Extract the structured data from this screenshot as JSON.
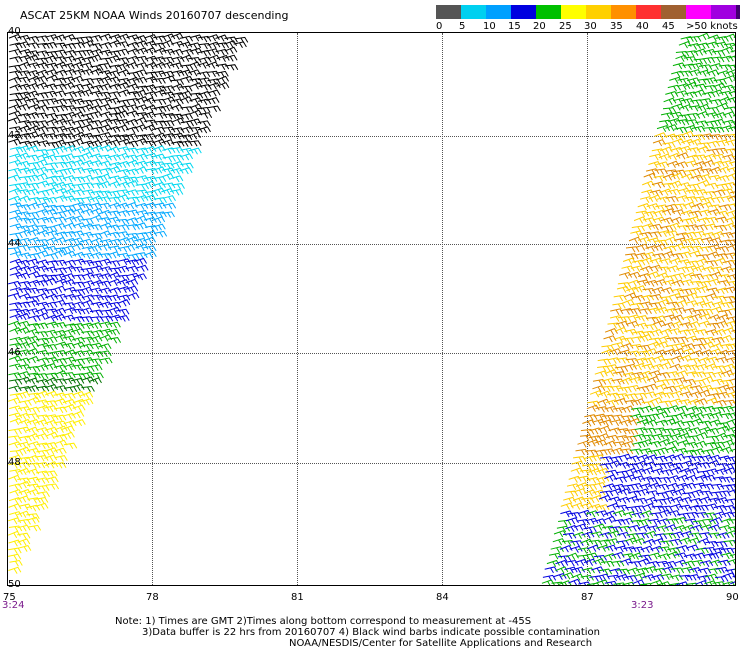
{
  "title": "ASCAT 25KM NOAA Winds 20160707 descending",
  "legend": {
    "colors": [
      "#555555",
      "#00d0f0",
      "#00a0ff",
      "#0000e0",
      "#00c000",
      "#ffff00",
      "#ffd000",
      "#ff9000",
      "#ff3030",
      "#a06030",
      "#ff00ff",
      "#a000e0",
      "#400070"
    ],
    "labels": [
      "0",
      "5",
      "10",
      "15",
      "20",
      "25",
      "30",
      "35",
      "40",
      "45",
      ">50 knots"
    ]
  },
  "map": {
    "lat_labels": [
      "40",
      "42",
      "44",
      "46",
      "48",
      "50"
    ],
    "lon_labels": [
      "75",
      "78",
      "81",
      "84",
      "87",
      "90"
    ],
    "time_left": "3:24",
    "time_right": "3:23"
  },
  "notes": [
    "Note: 1) Times are GMT 2)Times along bottom correspond to measurement at -45S",
    "3)Data buffer is 22 hrs from 20160707 4) Black wind barbs indicate possible contamination",
    "NOAA/NESDIS/Center for Satellite Applications and Research"
  ],
  "wind_colors": {
    "black": "#000000",
    "cyan": "#00d8f0",
    "lightblue": "#00a8ff",
    "blue": "#0000e0",
    "green": "#00b000",
    "darkgreen": "#007000",
    "yellow": "#ffee00",
    "gold": "#ffcc00",
    "orange": "#e08a00"
  }
}
